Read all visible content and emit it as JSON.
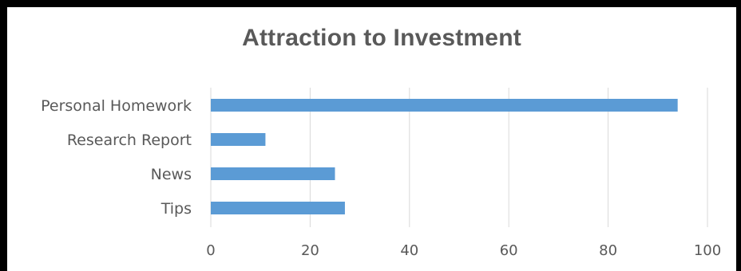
{
  "chart_data": {
    "type": "bar",
    "orientation": "horizontal",
    "title": "Attraction to Investment",
    "categories": [
      "Personal Homework",
      "Research Report",
      "News",
      "Tips"
    ],
    "values": [
      94,
      11,
      25,
      27
    ],
    "xlabel": "",
    "ylabel": "",
    "xlim": [
      0,
      100
    ],
    "xticks": [
      0,
      20,
      40,
      60,
      80,
      100
    ],
    "grid": "vertical",
    "legend": "none",
    "bar_color": "#5B9BD5",
    "grid_color": "#D9D9D9"
  }
}
